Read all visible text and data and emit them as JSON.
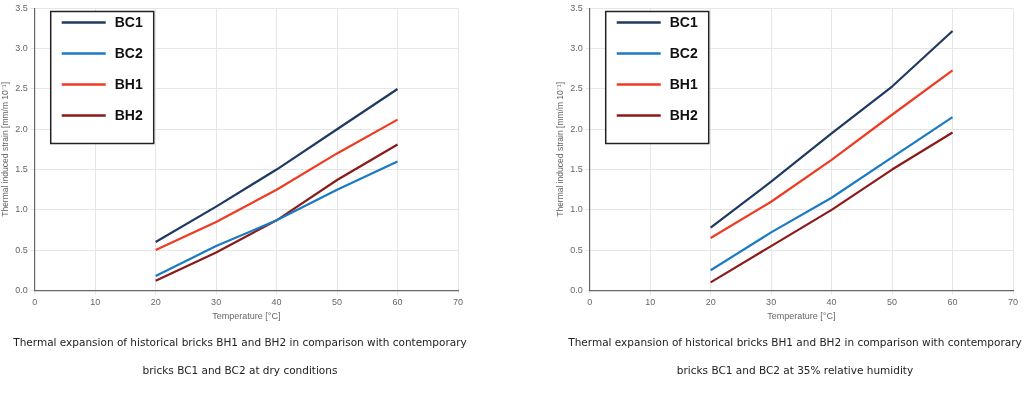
{
  "chart_data": [
    {
      "type": "line",
      "xlabel": "Temperature [°C]",
      "ylabel": "Thermal induced strain [mm/m 10⁻¹]",
      "x": [
        20,
        30,
        40,
        50,
        60
      ],
      "xlim": [
        0,
        70
      ],
      "xticks": [
        0,
        10,
        20,
        30,
        40,
        50,
        60,
        70
      ],
      "ylim": [
        0,
        3.5
      ],
      "yticks": [
        {
          "value": 0,
          "label": "0.0"
        },
        {
          "value": 0.5,
          "label": "0.5"
        },
        {
          "value": 1,
          "label": "1.0"
        },
        {
          "value": 1.5,
          "label": "1.5"
        },
        {
          "value": 2,
          "label": "2.0"
        },
        {
          "value": 2.5,
          "label": "2.5"
        },
        {
          "value": 3,
          "label": "3.0"
        },
        {
          "value": 3.5,
          "label": "3.5"
        }
      ],
      "grid": true,
      "legend": "top left",
      "marker": "none",
      "line_style": "solid",
      "series": [
        {
          "name": "BC1",
          "color": "#1f3a5f",
          "values": [
            0.6,
            1.04,
            1.5,
            2.0,
            2.5
          ]
        },
        {
          "name": "BC2",
          "color": "#1a7ac4",
          "values": [
            0.18,
            0.55,
            0.87,
            1.25,
            1.6
          ]
        },
        {
          "name": "BH1",
          "color": "#ee3b24",
          "values": [
            0.5,
            0.85,
            1.25,
            1.7,
            2.12
          ]
        },
        {
          "name": "BH2",
          "color": "#8b1a1a",
          "values": [
            0.12,
            0.47,
            0.87,
            1.37,
            1.81
          ]
        }
      ],
      "annotations": [
        "Thermal expansion of historical bricks BH1 and BH2 in comparison with contemporary bricks BC1 and BC2 at dry conditions"
      ]
    },
    {
      "type": "line",
      "xlabel": "Temperature [°C]",
      "ylabel": "Thermal induced strain [mm/m 10⁻¹]",
      "x": [
        20,
        30,
        40,
        50,
        60
      ],
      "xlim": [
        0,
        70
      ],
      "xticks": [
        0,
        10,
        20,
        30,
        40,
        50,
        60,
        70
      ],
      "ylim": [
        0,
        3.5
      ],
      "yticks": [
        {
          "value": 0,
          "label": "0.0"
        },
        {
          "value": 0.5,
          "label": "0.5"
        },
        {
          "value": 1,
          "label": "1.0"
        },
        {
          "value": 1.5,
          "label": "1.5"
        },
        {
          "value": 2,
          "label": "2.0"
        },
        {
          "value": 2.5,
          "label": "2.5"
        },
        {
          "value": 3,
          "label": "3.0"
        },
        {
          "value": 3.5,
          "label": "3.5"
        }
      ],
      "grid": true,
      "legend": "top left",
      "marker": "none",
      "line_style": "solid",
      "series": [
        {
          "name": "BC1",
          "color": "#1f3a5f",
          "values": [
            0.78,
            1.35,
            1.95,
            2.53,
            3.22
          ]
        },
        {
          "name": "BC2",
          "color": "#1a7ac4",
          "values": [
            0.25,
            0.72,
            1.15,
            1.65,
            2.15
          ]
        },
        {
          "name": "BH1",
          "color": "#ee3b24",
          "values": [
            0.65,
            1.1,
            1.62,
            2.18,
            2.73
          ]
        },
        {
          "name": "BH2",
          "color": "#8b1a1a",
          "values": [
            0.1,
            0.55,
            1.0,
            1.5,
            1.96
          ]
        }
      ],
      "annotations": [
        "Thermal expansion of historical bricks BH1 and BH2 in comparison with contemporary bricks BC1 and BC2 at 35% relative humidity"
      ]
    }
  ]
}
